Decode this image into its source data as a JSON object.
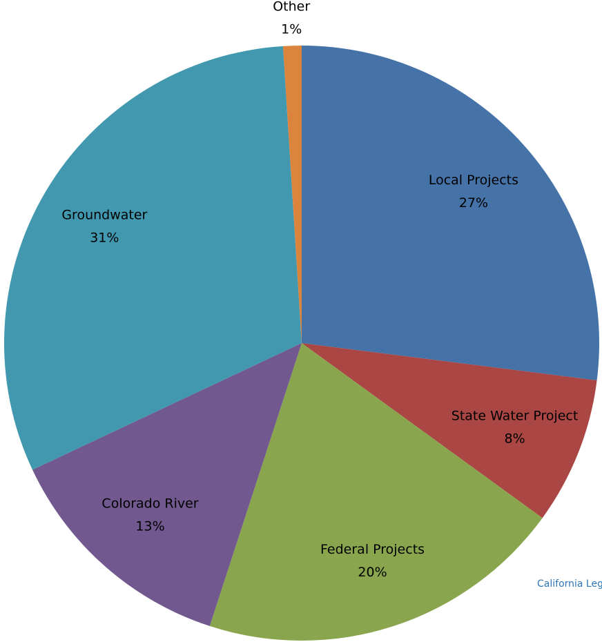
{
  "chart_data": {
    "type": "pie",
    "categories": [
      "Local Projects",
      "State Water Project",
      "Federal Projects",
      "Colorado River",
      "Groundwater",
      "Other"
    ],
    "values": [
      27,
      8,
      20,
      13,
      31,
      1
    ],
    "value_labels": [
      "27%",
      "8%",
      "20%",
      "13%",
      "31%",
      "1%"
    ],
    "colors": [
      "#4572a7",
      "#aa4643",
      "#89a54e",
      "#71588f",
      "#4198af",
      "#db843d"
    ],
    "source": "California Legi"
  }
}
